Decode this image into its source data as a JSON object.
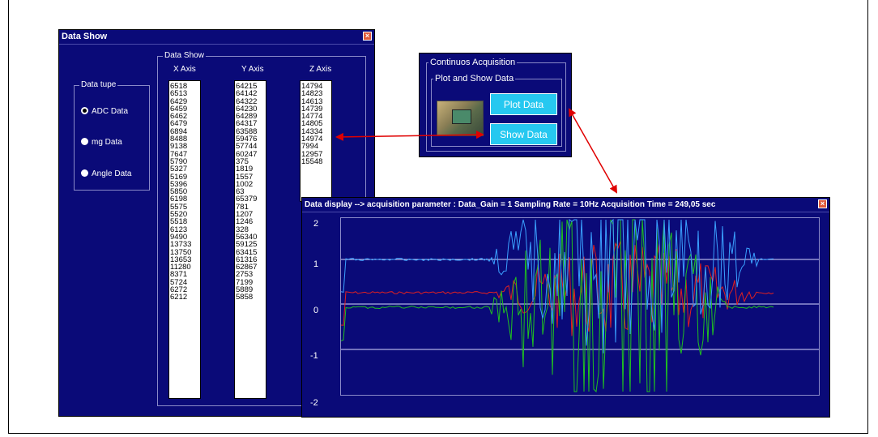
{
  "data_show_window": {
    "title": "Data Show",
    "close_glyph": "×",
    "group_title": "Data Show",
    "columns": [
      "X Axis",
      "Y Axis",
      "Z Axis"
    ],
    "data_type_group": "Data tupe",
    "radios": [
      {
        "label": "ADC Data",
        "selected": true
      },
      {
        "label": "mg Data",
        "selected": false
      },
      {
        "label": "Angle Data",
        "selected": false
      }
    ],
    "x_values": [
      "6518",
      "6513",
      "6429",
      "6459",
      "6462",
      "6479",
      "6894",
      "8488",
      "9138",
      "7647",
      "5790",
      "5327",
      "5169",
      "5396",
      "5850",
      "6198",
      "5575",
      "5520",
      "5518",
      "6123",
      "9490",
      "13733",
      "13750",
      "13653",
      "11280",
      "8371",
      "5724",
      "6272",
      "6212"
    ],
    "y_values": [
      "64215",
      "64142",
      "64322",
      "64230",
      "64289",
      "64317",
      "63588",
      "59476",
      "57744",
      "60247",
      "375",
      "1819",
      "1557",
      "1002",
      "63",
      "65379",
      "781",
      "1207",
      "1246",
      "328",
      "56340",
      "59125",
      "63415",
      "61316",
      "62867",
      "2753",
      "7199",
      "5889",
      "5858"
    ],
    "z_values": [
      "14794",
      "14823",
      "14613",
      "14739",
      "14774",
      "14805",
      "14334",
      "14974",
      "7994",
      "12957",
      "15548"
    ]
  },
  "acquisition_window": {
    "group_title": "Continuos Acquisition",
    "sub_group_title": "Plot and Show Data",
    "plot_button": "Plot Data",
    "show_button": "Show Data"
  },
  "display_window": {
    "title": "Data display --> acquisition parameter :   Data_Gain = 1     Sampling Rate = 10Hz     Acquisition Time = 249,05 sec",
    "close_glyph": "×",
    "y_ticks": [
      "2",
      "1",
      "0",
      "-1",
      "-2"
    ]
  },
  "colors": {
    "window_bg": "#0a0a78",
    "button_bg": "#26c8f0",
    "arrow": "#e00000",
    "trace_blue": "#3aa0ff",
    "trace_red": "#e02020",
    "trace_green": "#20c020"
  }
}
